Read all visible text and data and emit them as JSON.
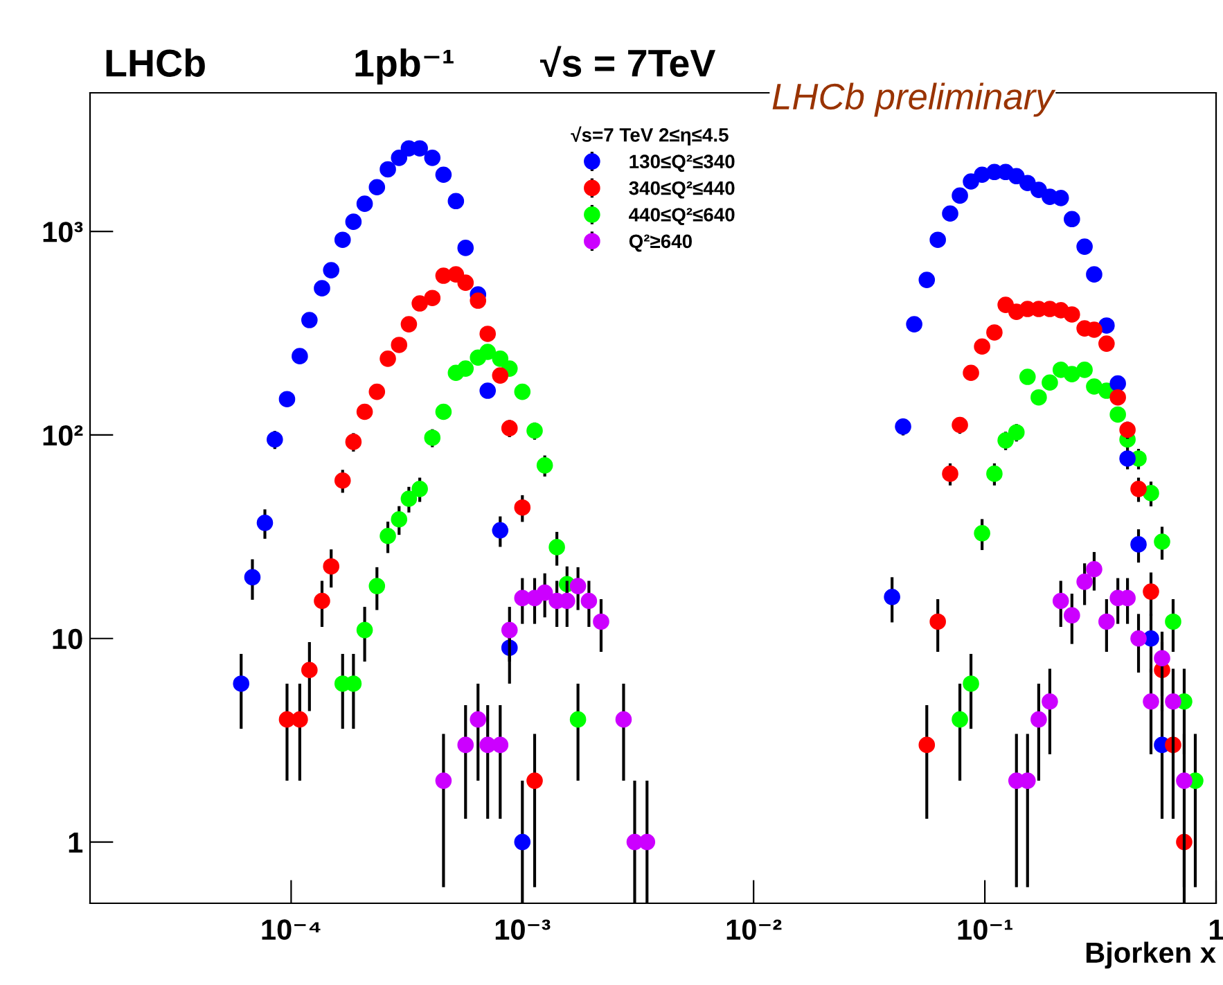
{
  "chart_data": {
    "type": "scatter",
    "title": "LHCb",
    "xlabel": "Bjorken x",
    "legend_title": "√s=7 TeV 2≤η≤4.5",
    "annotations": [
      "1pb⁻¹",
      "√s = 7TeV",
      "LHCb preliminary"
    ],
    "log": "xy",
    "xlim": [
      1.35e-05,
      1
    ],
    "ylim": [
      0.5,
      4800
    ],
    "xticks": [
      {
        "value": 0.0001,
        "label": "10⁻⁴"
      },
      {
        "value": 0.001,
        "label": "10⁻³"
      },
      {
        "value": 0.01,
        "label": "10⁻²"
      },
      {
        "value": 0.1,
        "label": "10⁻¹"
      },
      1
    ],
    "yticks": [
      1,
      10,
      {
        "value": 100,
        "label": "10²"
      },
      {
        "value": 1000,
        "label": "10³"
      }
    ],
    "grid": false,
    "legend": "top",
    "marker": "circle",
    "series": [
      {
        "name": "130≤Q²≤340",
        "color": "#0000ff",
        "x": [
          6.08e-05,
          6.8e-05,
          7.7e-05,
          8.5e-05,
          9.6e-05,
          0.000109,
          0.00012,
          0.000136,
          0.000149,
          0.000167,
          0.000186,
          0.000208,
          0.000235,
          0.000262,
          0.000293,
          0.000323,
          0.00036,
          0.000408,
          0.000456,
          0.000516,
          0.000568,
          0.000643,
          0.000708,
          0.000802,
          0.00088,
          0.001,
          0.0397,
          0.0443,
          0.0495,
          0.0561,
          0.0626,
          0.0708,
          0.078,
          0.0871,
          0.0973,
          0.11,
          0.123,
          0.137,
          0.153,
          0.171,
          0.191,
          0.213,
          0.238,
          0.27,
          0.297,
          0.336,
          0.376,
          0.414,
          0.462,
          0.523,
          0.584
        ],
        "values": [
          6,
          20,
          37,
          95,
          150,
          244,
          367,
          526,
          645,
          910,
          1116,
          1368,
          1650,
          2020,
          2300,
          2560,
          2560,
          2300,
          1900,
          1410,
          830,
          490,
          165,
          34,
          9,
          1,
          16,
          110,
          350,
          578,
          910,
          1225,
          1500,
          1760,
          1900,
          1960,
          1960,
          1870,
          1730,
          1600,
          1480,
          1460,
          1150,
          842,
          615,
          345,
          179,
          76.6,
          29,
          10,
          3
        ],
        "errors": [
          2.4,
          4.5,
          6.1,
          9.7,
          null,
          null,
          null,
          null,
          null,
          null,
          null,
          null,
          null,
          null,
          null,
          null,
          null,
          null,
          null,
          null,
          null,
          null,
          null,
          5.8,
          3,
          [
            0.5,
            2
          ],
          4,
          10.5,
          null,
          null,
          null,
          null,
          null,
          null,
          null,
          null,
          null,
          null,
          null,
          null,
          null,
          null,
          null,
          null,
          null,
          null,
          null,
          8.8,
          5.4,
          3.2,
          1.7
        ]
      },
      {
        "name": "340≤Q²≤440",
        "color": "#ff0000",
        "x": [
          9.6e-05,
          0.000109,
          0.00012,
          0.000136,
          0.000149,
          0.000167,
          0.000186,
          0.000208,
          0.000235,
          0.000262,
          0.000293,
          0.000323,
          0.00036,
          0.000408,
          0.000456,
          0.000516,
          0.000568,
          0.000643,
          0.000708,
          0.000802,
          0.00088,
          0.001,
          0.00113,
          0.0561,
          0.0626,
          0.0708,
          0.078,
          0.0871,
          0.0973,
          0.11,
          0.123,
          0.137,
          0.153,
          0.171,
          0.191,
          0.213,
          0.238,
          0.27,
          0.297,
          0.336,
          0.376,
          0.414,
          0.462,
          0.523,
          0.584,
          0.652,
          0.728
        ],
        "values": [
          4,
          4,
          7,
          15.3,
          22.6,
          59.7,
          92.5,
          130,
          163,
          237,
          277,
          350,
          443,
          471,
          606,
          615,
          560,
          457,
          314,
          196,
          108,
          44,
          2,
          3,
          12.1,
          64.5,
          112,
          202,
          272,
          319,
          436,
          403,
          416,
          416,
          416,
          410,
          391,
          334,
          329,
          281,
          153,
          106,
          54.3,
          17,
          7,
          3,
          1
        ],
        "errors": [
          2,
          2,
          2.6,
          3.9,
          4.8,
          7.7,
          9.6,
          null,
          null,
          null,
          null,
          null,
          null,
          null,
          null,
          null,
          null,
          null,
          null,
          null,
          10.4,
          6.6,
          1.4,
          1.7,
          3.5,
          8,
          10.6,
          null,
          null,
          null,
          null,
          null,
          null,
          null,
          null,
          null,
          null,
          null,
          null,
          null,
          null,
          10.3,
          7.4,
          4.1,
          2.6,
          1.7,
          [
            0.5,
            1
          ]
        ]
      },
      {
        "name": "440≤Q²≤640",
        "color": "#00ff00",
        "x": [
          0.000167,
          0.000186,
          0.000208,
          0.000235,
          0.000262,
          0.000293,
          0.000323,
          0.00036,
          0.000408,
          0.000456,
          0.000516,
          0.000568,
          0.000643,
          0.000708,
          0.000802,
          0.00088,
          0.001,
          0.00113,
          0.00125,
          0.00141,
          0.00156,
          0.00174,
          0.078,
          0.0871,
          0.0973,
          0.11,
          0.123,
          0.137,
          0.153,
          0.171,
          0.191,
          0.213,
          0.238,
          0.27,
          0.297,
          0.336,
          0.376,
          0.414,
          0.462,
          0.523,
          0.584,
          0.652,
          0.728,
          0.813
        ],
        "values": [
          6,
          6,
          11,
          18.1,
          31.9,
          38.5,
          48.6,
          54.3,
          96.9,
          130,
          202,
          212,
          240,
          256,
          237,
          212,
          163,
          105,
          70.9,
          28.1,
          18.5,
          4,
          4,
          6,
          32.9,
          64.5,
          94,
          103,
          193,
          153,
          181,
          209,
          199,
          209,
          173,
          165,
          126,
          95,
          76.6,
          51.8,
          29.9,
          12.1,
          4.9,
          2
        ],
        "errors": [
          2.4,
          2.4,
          3.3,
          4.3,
          5.6,
          6.2,
          7,
          7.4,
          9.8,
          null,
          null,
          null,
          null,
          null,
          null,
          null,
          null,
          10.2,
          8.4,
          5.3,
          4.1,
          2,
          2,
          2.4,
          5.7,
          8,
          9.7,
          10.1,
          null,
          null,
          null,
          null,
          null,
          null,
          null,
          null,
          null,
          9.7,
          8.8,
          7.2,
          5.5,
          3.5,
          2.2,
          1.4
        ]
      },
      {
        "name": "Q²≥640",
        "color": "#cc00ff",
        "x": [
          0.000456,
          0.000568,
          0.000643,
          0.000708,
          0.000802,
          0.00088,
          0.001,
          0.00113,
          0.00125,
          0.00141,
          0.00156,
          0.00174,
          0.00194,
          0.00219,
          0.00274,
          0.00306,
          0.00346,
          0.137,
          0.153,
          0.171,
          0.191,
          0.213,
          0.238,
          0.27,
          0.297,
          0.336,
          0.376,
          0.414,
          0.462,
          0.523,
          0.584,
          0.652,
          0.728
        ],
        "values": [
          2,
          3,
          4,
          3,
          3,
          11,
          15.8,
          15.8,
          16.8,
          15.3,
          15.3,
          18.1,
          15.3,
          12.1,
          4,
          1,
          1,
          2,
          2,
          4,
          4.9,
          15.3,
          13,
          19,
          21.9,
          12.1,
          15.8,
          15.8,
          10,
          4.9,
          8,
          4.9,
          2
        ],
        "errors": [
          1.4,
          1.7,
          2,
          1.7,
          1.7,
          3.3,
          4,
          4,
          4.1,
          3.9,
          3.9,
          4.3,
          3.9,
          3.5,
          2,
          [
            0.5,
            2
          ],
          [
            0.5,
            2
          ],
          1.4,
          1.4,
          2,
          2.2,
          3.9,
          3.6,
          4.4,
          4.7,
          3.5,
          4,
          4,
          3.2,
          2.2,
          2.8,
          2.2,
          1.4
        ]
      }
    ]
  }
}
